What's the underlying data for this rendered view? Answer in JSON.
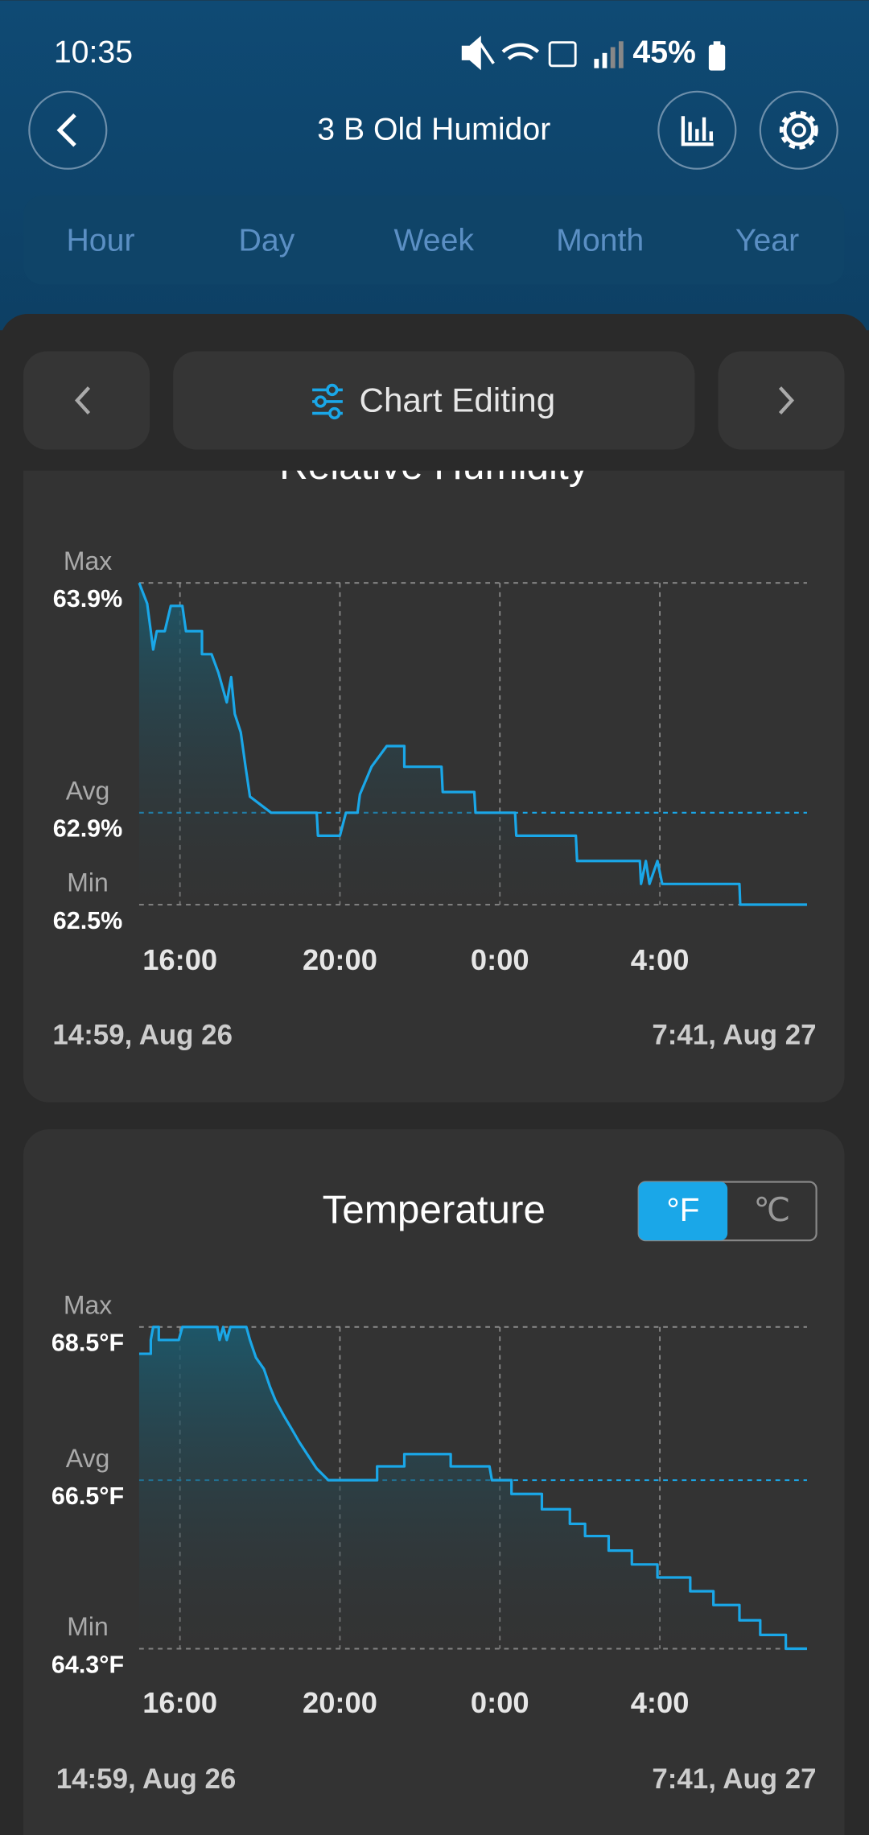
{
  "status_bar": {
    "time": "10:35",
    "battery": "45%"
  },
  "header": {
    "title": "3 B Old Humidor"
  },
  "tabs": [
    "Hour",
    "Day",
    "Week",
    "Month",
    "Year"
  ],
  "toolbar": {
    "label": "Chart Editing"
  },
  "chart_data": [
    {
      "type": "line",
      "title": "Relative Humidity",
      "color": "#1aa7e8",
      "x": [
        14.98,
        15.18,
        15.33,
        15.42,
        15.62,
        15.77,
        16.06,
        16.15,
        16.55,
        16.55,
        16.79,
        16.96,
        17.17,
        17.28,
        17.37,
        17.52,
        17.64,
        17.75,
        18.28,
        19.42,
        19.45,
        20.0,
        20.15,
        20.44,
        20.5,
        20.79,
        21.17,
        21.61,
        21.61,
        22.54,
        22.57,
        23.36,
        23.39,
        24.38,
        24.41,
        25.9,
        25.93,
        27.5,
        27.53,
        27.65,
        27.74,
        27.94,
        28.06,
        29.99,
        30.01,
        31.68
      ],
      "values": [
        63.9,
        63.81,
        63.61,
        63.69,
        63.69,
        63.8,
        63.8,
        63.69,
        63.69,
        63.59,
        63.59,
        63.51,
        63.38,
        63.49,
        63.33,
        63.25,
        63.1,
        62.97,
        62.9,
        62.9,
        62.8,
        62.8,
        62.9,
        62.9,
        62.98,
        63.1,
        63.19,
        63.19,
        63.1,
        63.1,
        62.99,
        62.99,
        62.9,
        62.9,
        62.8,
        62.8,
        62.69,
        62.69,
        62.59,
        62.69,
        62.59,
        62.69,
        62.59,
        62.59,
        62.5,
        62.5
      ],
      "xlim": [
        14.98,
        31.68
      ],
      "xticks": [
        {
          "value": 16,
          "label": "16:00"
        },
        {
          "value": 20,
          "label": "20:00"
        },
        {
          "value": 24,
          "label": "0:00"
        },
        {
          "value": 28,
          "label": "4:00"
        }
      ],
      "ylim": [
        62.5,
        63.9
      ],
      "yticks": [
        {
          "value": 63.9,
          "label": "63.9%"
        },
        {
          "value": 62.9,
          "label": "62.9%"
        },
        {
          "value": 62.5,
          "label": "62.5%"
        }
      ],
      "ytick_names": [
        "Max",
        "Avg",
        "Min"
      ],
      "ytick_colors": [
        "#8a8a8a",
        "#1aa7e8",
        "#8a8a8a"
      ],
      "start_label": "14:59, Aug 26",
      "end_label": "7:41, Aug 27"
    },
    {
      "type": "line",
      "title": "Temperature",
      "color": "#1aa7e8",
      "unit_options": [
        "°F",
        "℃"
      ],
      "x": [
        14.98,
        15.27,
        15.27,
        15.33,
        15.47,
        15.47,
        15.97,
        16.06,
        16.93,
        16.99,
        17.08,
        17.17,
        17.26,
        17.66,
        17.75,
        17.9,
        18.1,
        18.25,
        18.39,
        18.6,
        18.77,
        18.98,
        19.18,
        19.42,
        19.71,
        20.93,
        20.93,
        21.61,
        21.61,
        22.77,
        22.77,
        23.74,
        23.8,
        24.29,
        24.29,
        25.05,
        25.05,
        25.75,
        25.75,
        26.13,
        26.13,
        26.72,
        26.72,
        27.3,
        27.3,
        27.94,
        27.94,
        28.76,
        28.76,
        29.34,
        29.34,
        29.99,
        29.99,
        30.51,
        30.51,
        31.15,
        31.15,
        31.68
      ],
      "values": [
        68.15,
        68.15,
        68.33,
        68.5,
        68.5,
        68.33,
        68.33,
        68.5,
        68.5,
        68.33,
        68.5,
        68.33,
        68.5,
        68.5,
        68.33,
        68.1,
        67.95,
        67.72,
        67.54,
        67.34,
        67.19,
        67.0,
        66.84,
        66.65,
        66.5,
        66.5,
        66.68,
        66.68,
        66.84,
        66.84,
        66.68,
        66.68,
        66.5,
        66.5,
        66.32,
        66.32,
        66.12,
        66.12,
        65.93,
        65.93,
        65.77,
        65.77,
        65.58,
        65.58,
        65.4,
        65.4,
        65.23,
        65.23,
        65.05,
        65.05,
        64.87,
        64.87,
        64.67,
        64.67,
        64.48,
        64.48,
        64.3,
        64.3
      ],
      "xlim": [
        14.98,
        31.68
      ],
      "xticks": [
        {
          "value": 16,
          "label": "16:00"
        },
        {
          "value": 20,
          "label": "20:00"
        },
        {
          "value": 24,
          "label": "0:00"
        },
        {
          "value": 28,
          "label": "4:00"
        }
      ],
      "ylim": [
        64.3,
        68.5
      ],
      "yticks": [
        {
          "value": 68.5,
          "label": "68.5°F"
        },
        {
          "value": 66.5,
          "label": "66.5°F"
        },
        {
          "value": 64.3,
          "label": "64.3°F"
        }
      ],
      "ytick_names": [
        "Max",
        "Avg",
        "Min"
      ],
      "ytick_colors": [
        "#8a8a8a",
        "#1aa7e8",
        "#8a8a8a"
      ],
      "start_label": "14:59, Aug 26",
      "end_label": "7:41, Aug 27"
    }
  ]
}
